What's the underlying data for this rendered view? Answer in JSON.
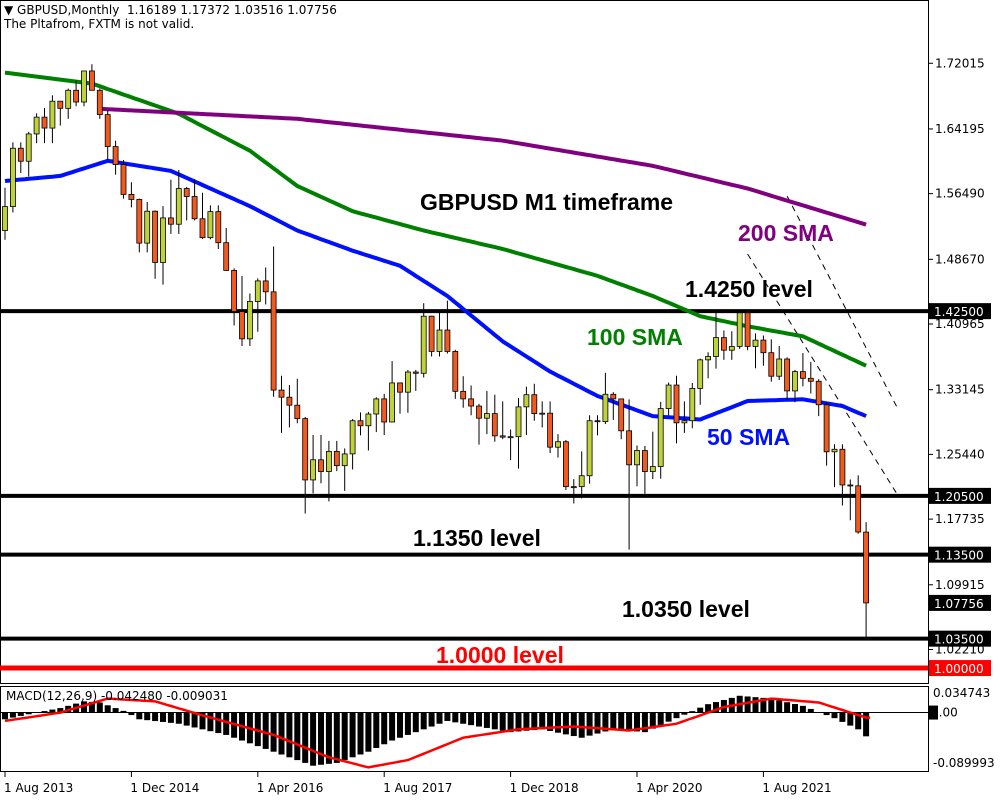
{
  "header": {
    "symbol_line": "GBPUSD,Monthly  1.16189 1.17372 1.03516 1.07756",
    "notice": "The Pltafrom, FXTM is not valid."
  },
  "colors": {
    "bull": "#bfd23a",
    "bear": "#f05a1e",
    "sma50": "#0010ff",
    "sma100": "#008000",
    "sma200": "#800080",
    "level": "#000000",
    "parity": "#ff0000",
    "macd_signal": "#ff0000",
    "macd_hist": "#000000"
  },
  "chart_data": [
    {
      "type": "candlestick",
      "title": "GBPUSD M1 timeframe",
      "start_month": "2013-08",
      "ohlc_fields": [
        "open",
        "high",
        "low",
        "close"
      ],
      "ohlc": [
        [
          1.521,
          1.572,
          1.51,
          1.5495
        ],
        [
          1.5495,
          1.626,
          1.5425,
          1.619
        ],
        [
          1.619,
          1.626,
          1.5895,
          1.6035
        ],
        [
          1.6035,
          1.6385,
          1.5855,
          1.636
        ],
        [
          1.636,
          1.6605,
          1.625,
          1.656
        ],
        [
          1.656,
          1.667,
          1.625,
          1.643
        ],
        [
          1.643,
          1.682,
          1.625,
          1.675
        ],
        [
          1.675,
          1.675,
          1.646,
          1.6665
        ],
        [
          1.6665,
          1.69,
          1.654,
          1.688
        ],
        [
          1.688,
          1.6995,
          1.669,
          1.674
        ],
        [
          1.674,
          1.711,
          1.669,
          1.711
        ],
        [
          1.711,
          1.719,
          1.688,
          1.688
        ],
        [
          1.688,
          1.69,
          1.654,
          1.659
        ],
        [
          1.659,
          1.6645,
          1.605,
          1.621
        ],
        [
          1.621,
          1.628,
          1.5875,
          1.5995
        ],
        [
          1.5995,
          1.605,
          1.559,
          1.564
        ],
        [
          1.564,
          1.5785,
          1.5485,
          1.558
        ],
        [
          1.558,
          1.559,
          1.495,
          1.506
        ],
        [
          1.506,
          1.555,
          1.495,
          1.544
        ],
        [
          1.544,
          1.545,
          1.4635,
          1.483
        ],
        [
          1.483,
          1.55,
          1.4565,
          1.536
        ],
        [
          1.536,
          1.5815,
          1.517,
          1.5285
        ],
        [
          1.5285,
          1.593,
          1.517,
          1.571
        ],
        [
          1.571,
          1.573,
          1.533,
          1.5615
        ],
        [
          1.5615,
          1.582,
          1.533,
          1.535
        ],
        [
          1.535,
          1.566,
          1.511,
          1.5125
        ],
        [
          1.5125,
          1.551,
          1.5105,
          1.5435
        ],
        [
          1.5435,
          1.551,
          1.499,
          1.5065
        ],
        [
          1.5065,
          1.524,
          1.473,
          1.4735
        ],
        [
          1.4735,
          1.476,
          1.408,
          1.4245
        ],
        [
          1.4245,
          1.467,
          1.3835,
          1.392
        ],
        [
          1.392,
          1.446,
          1.3835,
          1.4365
        ],
        [
          1.4365,
          1.464,
          1.4005,
          1.461
        ],
        [
          1.461,
          1.477,
          1.433,
          1.448
        ],
        [
          1.448,
          1.502,
          1.323,
          1.331
        ],
        [
          1.331,
          1.348,
          1.28,
          1.3225
        ],
        [
          1.3225,
          1.337,
          1.2865,
          1.313
        ],
        [
          1.313,
          1.3445,
          1.2915,
          1.297
        ],
        [
          1.297,
          1.299,
          1.184,
          1.224
        ],
        [
          1.224,
          1.2775,
          1.208,
          1.248
        ],
        [
          1.248,
          1.2775,
          1.22,
          1.234
        ],
        [
          1.234,
          1.2705,
          1.1985,
          1.258
        ],
        [
          1.258,
          1.2705,
          1.2345,
          1.241
        ],
        [
          1.241,
          1.2615,
          1.211,
          1.255
        ],
        [
          1.255,
          1.2965,
          1.2365,
          1.2945
        ],
        [
          1.2945,
          1.3045,
          1.277,
          1.2885
        ],
        [
          1.2885,
          1.305,
          1.259,
          1.3025
        ],
        [
          1.3025,
          1.3225,
          1.281,
          1.3205
        ],
        [
          1.3205,
          1.3265,
          1.2775,
          1.293
        ],
        [
          1.293,
          1.3655,
          1.2925,
          1.3395
        ],
        [
          1.3395,
          1.34,
          1.303,
          1.3285
        ],
        [
          1.3285,
          1.355,
          1.304,
          1.3525
        ],
        [
          1.3525,
          1.355,
          1.33,
          1.351
        ],
        [
          1.351,
          1.4345,
          1.346,
          1.419
        ],
        [
          1.419,
          1.4195,
          1.371,
          1.377
        ],
        [
          1.377,
          1.4245,
          1.371,
          1.4025
        ],
        [
          1.4025,
          1.4375,
          1.3745,
          1.377
        ],
        [
          1.377,
          1.379,
          1.3205,
          1.3295
        ],
        [
          1.3295,
          1.3475,
          1.31,
          1.3205
        ],
        [
          1.3205,
          1.3365,
          1.301,
          1.312
        ],
        [
          1.312,
          1.3145,
          1.266,
          1.2975
        ],
        [
          1.2975,
          1.33,
          1.2785,
          1.303
        ],
        [
          1.303,
          1.3255,
          1.2695,
          1.2765
        ],
        [
          1.2765,
          1.3175,
          1.2725,
          1.275
        ],
        [
          1.275,
          1.284,
          1.2475,
          1.2755
        ],
        [
          1.2755,
          1.3215,
          1.2375,
          1.311
        ],
        [
          1.311,
          1.335,
          1.2775,
          1.3255
        ],
        [
          1.3255,
          1.3385,
          1.2945,
          1.303
        ],
        [
          1.303,
          1.3175,
          1.2865,
          1.3035
        ],
        [
          1.3035,
          1.3175,
          1.256,
          1.263
        ],
        [
          1.263,
          1.2785,
          1.2505,
          1.2695
        ],
        [
          1.2695,
          1.2715,
          1.212,
          1.216
        ],
        [
          1.216,
          1.225,
          1.196,
          1.216
        ],
        [
          1.216,
          1.258,
          1.202,
          1.229
        ],
        [
          1.229,
          1.301,
          1.2195,
          1.2945
        ],
        [
          1.2945,
          1.301,
          1.277,
          1.2935
        ],
        [
          1.2935,
          1.3515,
          1.2905,
          1.326
        ],
        [
          1.326,
          1.3285,
          1.2955,
          1.3205
        ],
        [
          1.3205,
          1.321,
          1.2725,
          1.2825
        ],
        [
          1.2825,
          1.32,
          1.141,
          1.242
        ],
        [
          1.242,
          1.265,
          1.2165,
          1.259
        ],
        [
          1.259,
          1.2645,
          1.2075,
          1.234
        ],
        [
          1.234,
          1.2815,
          1.225,
          1.24
        ],
        [
          1.24,
          1.317,
          1.2255,
          1.309
        ],
        [
          1.309,
          1.34,
          1.301,
          1.337
        ],
        [
          1.337,
          1.348,
          1.2675,
          1.292
        ],
        [
          1.292,
          1.3175,
          1.28,
          1.2945
        ],
        [
          1.2945,
          1.3395,
          1.2855,
          1.333
        ],
        [
          1.333,
          1.3685,
          1.3135,
          1.367
        ],
        [
          1.367,
          1.376,
          1.345,
          1.371
        ],
        [
          1.371,
          1.424,
          1.3565,
          1.3935
        ],
        [
          1.3935,
          1.402,
          1.367,
          1.3785
        ],
        [
          1.3785,
          1.401,
          1.367,
          1.383
        ],
        [
          1.383,
          1.423,
          1.38,
          1.423
        ],
        [
          1.423,
          1.425,
          1.3785,
          1.383
        ],
        [
          1.383,
          1.3985,
          1.357,
          1.3905
        ],
        [
          1.3905,
          1.396,
          1.36,
          1.3755
        ],
        [
          1.3755,
          1.3915,
          1.341,
          1.3475
        ],
        [
          1.3475,
          1.3835,
          1.343,
          1.368
        ],
        [
          1.368,
          1.37,
          1.3195,
          1.33
        ],
        [
          1.33,
          1.355,
          1.3165,
          1.353
        ],
        [
          1.353,
          1.375,
          1.3355,
          1.345
        ],
        [
          1.345,
          1.3645,
          1.327,
          1.3415
        ],
        [
          1.3415,
          1.344,
          1.3,
          1.3135
        ],
        [
          1.3135,
          1.3165,
          1.241,
          1.2575
        ],
        [
          1.2575,
          1.2665,
          1.2155,
          1.2605
        ],
        [
          1.2605,
          1.2665,
          1.1935,
          1.218
        ],
        [
          1.218,
          1.2245,
          1.176,
          1.217
        ],
        [
          1.217,
          1.2295,
          1.16,
          1.162
        ],
        [
          1.16189,
          1.17372,
          1.03516,
          1.07756
        ]
      ],
      "sma": [
        {
          "name": "50 SMA",
          "color_key": "sma50",
          "points": [
            [
              "2013-08",
              1.58
            ],
            [
              "2014-03",
              1.586
            ],
            [
              "2014-09",
              1.604
            ],
            [
              "2015-05",
              1.592
            ],
            [
              "2016-03",
              1.55
            ],
            [
              "2016-09",
              1.521
            ],
            [
              "2017-04",
              1.497
            ],
            [
              "2017-10",
              1.479
            ],
            [
              "2018-04",
              1.443
            ],
            [
              "2018-11",
              1.389
            ],
            [
              "2019-05",
              1.353
            ],
            [
              "2019-11",
              1.324
            ],
            [
              "2020-06",
              1.3
            ],
            [
              "2020-12",
              1.296
            ],
            [
              "2021-06",
              1.318
            ],
            [
              "2022-01",
              1.32
            ],
            [
              "2022-06",
              1.312
            ],
            [
              "2022-09",
              1.3
            ]
          ]
        },
        {
          "name": "100 SMA",
          "color_key": "sma100",
          "points": [
            [
              "2013-08",
              1.709
            ],
            [
              "2014-07",
              1.696
            ],
            [
              "2015-06",
              1.66
            ],
            [
              "2016-03",
              1.616
            ],
            [
              "2016-09",
              1.574
            ],
            [
              "2017-04",
              1.544
            ],
            [
              "2018-01",
              1.521
            ],
            [
              "2018-11",
              1.499
            ],
            [
              "2019-11",
              1.467
            ],
            [
              "2020-06",
              1.443
            ],
            [
              "2020-12",
              1.419
            ],
            [
              "2021-06",
              1.407
            ],
            [
              "2022-01",
              1.395
            ],
            [
              "2022-09",
              1.36
            ]
          ]
        },
        {
          "name": "200 SMA",
          "color_key": "sma200",
          "points": [
            [
              "2014-08",
              1.666
            ],
            [
              "2016-09",
              1.654
            ],
            [
              "2018-11",
              1.628
            ],
            [
              "2020-06",
              1.598
            ],
            [
              "2021-06",
              1.571
            ],
            [
              "2022-09",
              1.528
            ]
          ]
        }
      ],
      "levels": [
        {
          "label": "1.4250 level",
          "value": 1.425,
          "color_key": "level"
        },
        {
          "label": "",
          "value": 1.205,
          "color_key": "level"
        },
        {
          "label": "1.1350 level",
          "value": 1.135,
          "color_key": "level"
        },
        {
          "label": "1.0350 level",
          "value": 1.035,
          "color_key": "level"
        },
        {
          "label": "1.0000 level",
          "value": 1.0,
          "color_key": "parity"
        }
      ],
      "trendlines": [
        {
          "style": "dashed",
          "from": [
            "2021-11",
            1.562
          ],
          "to": [
            "2023-01",
            1.309
          ]
        },
        {
          "style": "dashed",
          "from": [
            "2021-06",
            1.493
          ],
          "to": [
            "2023-01",
            1.206
          ]
        }
      ],
      "y_ticks": [
        "1.72015",
        "1.64195",
        "1.56490",
        "1.48670",
        "1.40965",
        "1.33145",
        "1.25440",
        "1.17735",
        "1.09915",
        "1.02210"
      ],
      "y_range": [
        0.981,
        1.7955
      ],
      "price_tags": [
        {
          "text": "1.42500",
          "value": 1.425,
          "color_key": "level"
        },
        {
          "text": "1.20500",
          "value": 1.205,
          "color_key": "level"
        },
        {
          "text": "1.13500",
          "value": 1.135,
          "color_key": "level"
        },
        {
          "text": "1.07756",
          "value": 1.07756,
          "color_key": "level"
        },
        {
          "text": "1.03500",
          "value": 1.035,
          "color_key": "level"
        },
        {
          "text": "1.00000",
          "value": 1.0,
          "color_key": "parity"
        }
      ],
      "x_ticks": [
        "1 Aug 2013",
        "1 Dec 2014",
        "1 Apr 2016",
        "1 Aug 2017",
        "1 Dec 2018",
        "1 Apr 2020",
        "1 Aug 2021"
      ],
      "x_tick_months": [
        "2013-08",
        "2014-12",
        "2016-04",
        "2017-08",
        "2018-12",
        "2020-04",
        "2021-08"
      ],
      "grid": false
    },
    {
      "type": "bar+line",
      "title": "MACD(12,26,9) -0.042480 -0.009031",
      "y_ticks": [
        "0.034743",
        "0.00",
        "-0.089993"
      ],
      "y_range": [
        -0.1045,
        0.0457
      ],
      "histogram_points": [
        [
          "2013-08",
          -0.012
        ],
        [
          "2013-12",
          0.0
        ],
        [
          "2014-03",
          0.008
        ],
        [
          "2014-06",
          0.02
        ],
        [
          "2014-08",
          0.018
        ],
        [
          "2014-11",
          0.003
        ],
        [
          "2015-01",
          -0.012
        ],
        [
          "2015-06",
          -0.02
        ],
        [
          "2015-12",
          -0.04
        ],
        [
          "2016-03",
          -0.055
        ],
        [
          "2016-07",
          -0.075
        ],
        [
          "2016-11",
          -0.095
        ],
        [
          "2017-02",
          -0.09
        ],
        [
          "2017-06",
          -0.07
        ],
        [
          "2017-09",
          -0.05
        ],
        [
          "2018-01",
          -0.03
        ],
        [
          "2018-04",
          -0.015
        ],
        [
          "2018-08",
          -0.025
        ],
        [
          "2018-12",
          -0.035
        ],
        [
          "2019-04",
          -0.03
        ],
        [
          "2019-09",
          -0.045
        ],
        [
          "2020-01",
          -0.03
        ],
        [
          "2020-05",
          -0.035
        ],
        [
          "2020-09",
          -0.01
        ],
        [
          "2021-01",
          0.015
        ],
        [
          "2021-05",
          0.03
        ],
        [
          "2021-09",
          0.025
        ],
        [
          "2022-01",
          0.012
        ],
        [
          "2022-05",
          -0.01
        ],
        [
          "2022-08",
          -0.03
        ],
        [
          "2022-09",
          -0.0425
        ]
      ],
      "signal_points": [
        [
          "2013-08",
          -0.015
        ],
        [
          "2014-03",
          0.0
        ],
        [
          "2014-09",
          0.025
        ],
        [
          "2015-03",
          0.02
        ],
        [
          "2015-09",
          -0.005
        ],
        [
          "2016-06",
          -0.04
        ],
        [
          "2017-01",
          -0.08
        ],
        [
          "2017-06",
          -0.098
        ],
        [
          "2017-11",
          -0.085
        ],
        [
          "2018-06",
          -0.045
        ],
        [
          "2019-01",
          -0.03
        ],
        [
          "2019-08",
          -0.025
        ],
        [
          "2020-03",
          -0.032
        ],
        [
          "2020-09",
          -0.02
        ],
        [
          "2021-03",
          0.01
        ],
        [
          "2021-09",
          0.025
        ],
        [
          "2022-03",
          0.018
        ],
        [
          "2022-07",
          0.0
        ],
        [
          "2022-09",
          -0.009
        ]
      ]
    }
  ]
}
